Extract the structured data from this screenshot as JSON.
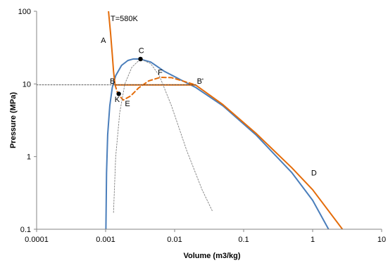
{
  "chart_data": {
    "type": "line",
    "xscale": "log",
    "yscale": "log",
    "xlabel": "Volume (m3/kg)",
    "ylabel": "Pressure (MPa)",
    "xlim": [
      0.0001,
      10
    ],
    "ylim": [
      0.1,
      100
    ],
    "legend": "none",
    "grid": false,
    "x_ticks": [
      {
        "value": 0.0001,
        "label": "0.0001"
      },
      {
        "value": 0.001,
        "label": "0.001"
      },
      {
        "value": 0.01,
        "label": "0.01"
      },
      {
        "value": 0.1,
        "label": "0.1"
      },
      {
        "value": 1,
        "label": "1"
      },
      {
        "value": 10,
        "label": "10"
      }
    ],
    "y_ticks": [
      {
        "value": 0.1,
        "label": "0.1"
      },
      {
        "value": 1,
        "label": "1"
      },
      {
        "value": 10,
        "label": "10"
      },
      {
        "value": 100,
        "label": "100"
      }
    ],
    "series": [
      {
        "id": "saturation-dome",
        "color": "#4a7ebb",
        "style": "solid",
        "points": [
          [
            0.00101,
            0.1
          ],
          [
            0.00103,
            0.6
          ],
          [
            0.00107,
            2.0
          ],
          [
            0.00115,
            5.0
          ],
          [
            0.00125,
            9.0
          ],
          [
            0.0014,
            13.0
          ],
          [
            0.0017,
            18.0
          ],
          [
            0.0021,
            21.0
          ],
          [
            0.0025,
            22.0
          ],
          [
            0.0031,
            22.06
          ],
          [
            0.0045,
            20.0
          ],
          [
            0.007,
            15.0
          ],
          [
            0.012,
            11.5
          ],
          [
            0.02,
            9.0
          ],
          [
            0.05,
            5.0
          ],
          [
            0.15,
            2.0
          ],
          [
            0.5,
            0.6
          ],
          [
            1.0,
            0.25
          ],
          [
            1.7,
            0.1
          ]
        ]
      },
      {
        "id": "isotherm-580k",
        "color": "#e46c0a",
        "style": "solid",
        "points": [
          [
            0.0011,
            100
          ],
          [
            0.00118,
            50
          ],
          [
            0.00125,
            25
          ],
          [
            0.0013,
            15
          ],
          [
            0.00137,
            9.7
          ],
          [
            0.02,
            9.7
          ],
          [
            0.05,
            5.2
          ],
          [
            0.15,
            2.1
          ],
          [
            0.5,
            0.7
          ],
          [
            1.0,
            0.35
          ],
          [
            2.7,
            0.1
          ]
        ]
      },
      {
        "id": "van-der-waals-loop",
        "color": "#e46c0a",
        "style": "dashed",
        "points": [
          [
            0.00137,
            9.7
          ],
          [
            0.0015,
            7.3
          ],
          [
            0.0018,
            6.0
          ],
          [
            0.0023,
            6.8
          ],
          [
            0.003,
            8.8
          ],
          [
            0.0042,
            11.0
          ],
          [
            0.0062,
            12.3
          ],
          [
            0.009,
            12.2
          ],
          [
            0.013,
            11.0
          ],
          [
            0.02,
            9.7
          ]
        ]
      },
      {
        "id": "spinodal",
        "color": "#7f7f7f",
        "style": "dotted",
        "points": [
          [
            0.0013,
            0.17
          ],
          [
            0.0014,
            1.0
          ],
          [
            0.0016,
            4.0
          ],
          [
            0.0019,
            10.0
          ],
          [
            0.0024,
            17.0
          ],
          [
            0.0032,
            22.0
          ],
          [
            0.0045,
            19.0
          ],
          [
            0.006,
            13.0
          ],
          [
            0.009,
            5.0
          ],
          [
            0.015,
            1.2
          ],
          [
            0.025,
            0.35
          ],
          [
            0.035,
            0.18
          ]
        ]
      },
      {
        "id": "isobar-psat",
        "color": "#404040",
        "style": "dotted",
        "points": [
          [
            0.0001,
            9.7
          ],
          [
            0.02,
            9.7
          ]
        ]
      }
    ],
    "markers": [
      {
        "label": "C",
        "x": 0.0032,
        "y": 22.0
      },
      {
        "label": "K",
        "x": 0.00155,
        "y": 7.3
      }
    ],
    "annotations": [
      {
        "text": "T=580K",
        "x": 0.00118,
        "y": 80
      },
      {
        "text": "A",
        "x": 0.00085,
        "y": 40
      },
      {
        "text": "B",
        "x": 0.00115,
        "y": 11.0
      },
      {
        "text": "C",
        "x": 0.003,
        "y": 29
      },
      {
        "text": "K",
        "x": 0.00135,
        "y": 6.2
      },
      {
        "text": "E",
        "x": 0.0019,
        "y": 5.4
      },
      {
        "text": "F",
        "x": 0.0057,
        "y": 14.5
      },
      {
        "text": "B'",
        "x": 0.021,
        "y": 11.0
      },
      {
        "text": "D",
        "x": 0.95,
        "y": 0.6
      }
    ]
  }
}
